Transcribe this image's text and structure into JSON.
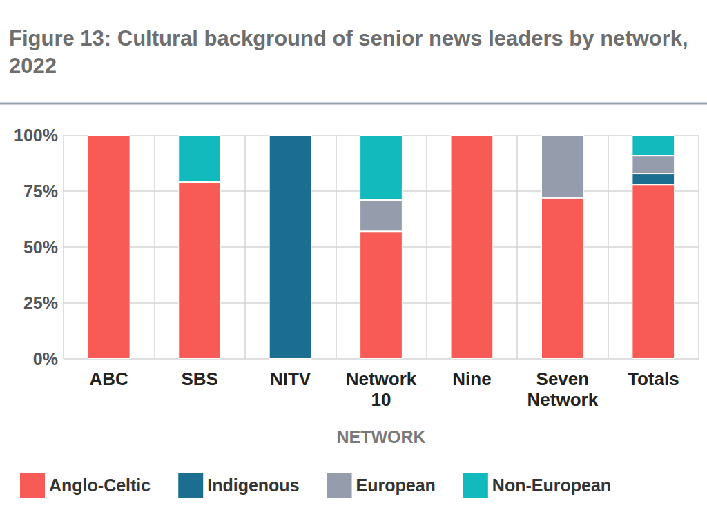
{
  "chart_data": {
    "type": "bar",
    "title": "Figure 13: Cultural background of senior news leaders by network, 2022",
    "x_label": "NETWORK",
    "categories": [
      "ABC",
      "SBS",
      "NITV",
      "Network 10",
      "Nine",
      "Seven Network",
      "Totals"
    ],
    "series": [
      {
        "name": "Anglo-Celtic",
        "color": "#f85a55",
        "values": [
          100,
          79,
          0,
          57,
          100,
          72,
          78
        ]
      },
      {
        "name": "Indigenous",
        "color": "#1b6e8f",
        "values": [
          0,
          0,
          100,
          0,
          0,
          0,
          5
        ]
      },
      {
        "name": "European",
        "color": "#959cac",
        "values": [
          0,
          0,
          0,
          14,
          0,
          28,
          8
        ]
      },
      {
        "name": "Non-European",
        "color": "#12b9bd",
        "values": [
          0,
          21,
          0,
          29,
          0,
          0,
          9
        ]
      }
    ],
    "stacked": true,
    "ylim": [
      0,
      100
    ],
    "yticks": [
      {
        "value": 0,
        "label": "0%"
      },
      {
        "value": 25,
        "label": "25%"
      },
      {
        "value": 50,
        "label": "50%"
      },
      {
        "value": 75,
        "label": "75%"
      },
      {
        "value": 100,
        "label": "100%"
      }
    ],
    "grid": true,
    "legend": "bottom"
  }
}
